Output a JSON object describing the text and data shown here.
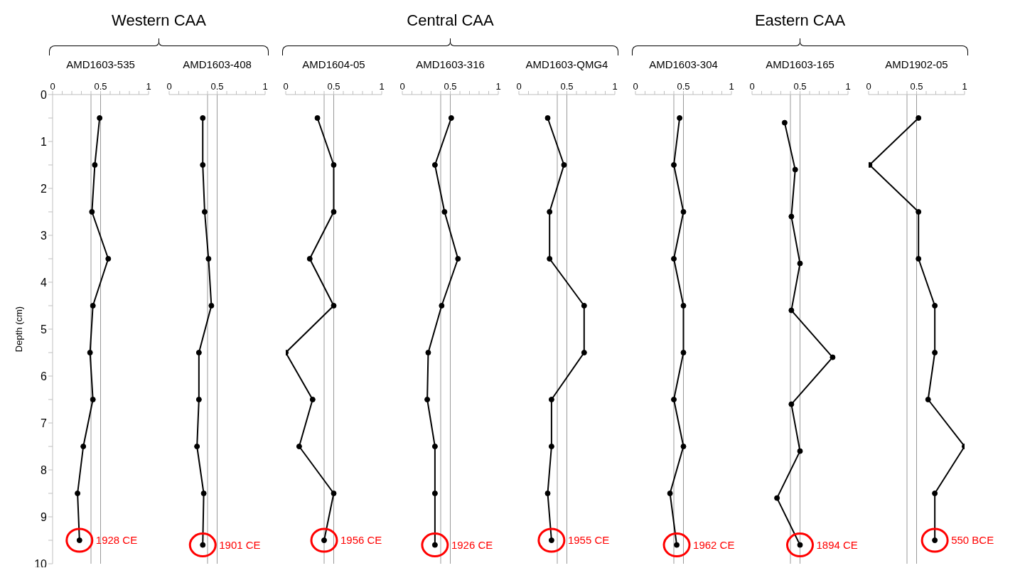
{
  "chart_data": [
    {
      "type": "line",
      "title": "AMD1603-535",
      "ylabel": "Depth (cm)",
      "annotations": [
        "Western CAA",
        {
          "text": "1928 CE",
          "x": 0.28,
          "y": 9.5
        }
      ],
      "marker": "circle",
      "xlim": [
        0,
        1
      ],
      "xticks": [
        0,
        {
          "value": 0.1,
          "label": null
        },
        {
          "value": 0.2,
          "label": null
        },
        {
          "value": 0.3,
          "label": null
        },
        {
          "value": 0.4,
          "label": null
        },
        0.5,
        {
          "value": 0.6,
          "label": null
        },
        {
          "value": 0.7,
          "label": null
        },
        {
          "value": 0.8,
          "label": null
        },
        {
          "value": 0.9,
          "label": null
        },
        1
      ],
      "ylim": [
        10,
        0
      ],
      "yticks": [
        0,
        {
          "value": 0.5,
          "label": null
        },
        1,
        {
          "value": 1.5,
          "label": null
        },
        2,
        {
          "value": 2.5,
          "label": null
        },
        3,
        {
          "value": 3.5,
          "label": null
        },
        4,
        {
          "value": 4.5,
          "label": null
        },
        5,
        {
          "value": 5.5,
          "label": null
        },
        6,
        {
          "value": 6.5,
          "label": null
        },
        7,
        {
          "value": 7.5,
          "label": null
        },
        8,
        {
          "value": 8.5,
          "label": null
        },
        9,
        {
          "value": 9.5,
          "label": null
        },
        10
      ],
      "ref_lines": [
        {
          "axis": "x",
          "value": 0.4,
          "color": "#999999"
        },
        {
          "axis": "x",
          "value": 0.5,
          "color": "#999999"
        }
      ],
      "series": [
        {
          "color": "#000000",
          "x": [
            0.49,
            0.44,
            0.41,
            0.58,
            0.42,
            0.39,
            0.42,
            0.32,
            0.26,
            0.28
          ],
          "values": [
            0.5,
            1.5,
            2.5,
            3.5,
            4.5,
            5.5,
            6.5,
            7.5,
            8.5,
            9.5
          ]
        }
      ]
    },
    {
      "type": "line",
      "title": "AMD1603-408",
      "annotations": [
        {
          "text": "1901 CE",
          "x": 0.35,
          "y": 9.6
        }
      ],
      "marker": "circle",
      "tick_labels": "x",
      "xlim": [
        0,
        1
      ],
      "xticks": [
        0,
        {
          "value": 0.1,
          "label": null
        },
        {
          "value": 0.2,
          "label": null
        },
        {
          "value": 0.3,
          "label": null
        },
        {
          "value": 0.4,
          "label": null
        },
        0.5,
        {
          "value": 0.6,
          "label": null
        },
        {
          "value": 0.7,
          "label": null
        },
        {
          "value": 0.8,
          "label": null
        },
        {
          "value": 0.9,
          "label": null
        },
        1
      ],
      "ylim": [
        10,
        0
      ],
      "ref_lines": [
        {
          "axis": "x",
          "value": 0.4,
          "color": "#999999"
        },
        {
          "axis": "x",
          "value": 0.5,
          "color": "#999999"
        }
      ],
      "series": [
        {
          "color": "#000000",
          "x": [
            0.35,
            0.35,
            0.37,
            0.41,
            0.44,
            0.31,
            0.31,
            0.29,
            0.36,
            0.35
          ],
          "values": [
            0.5,
            1.5,
            2.5,
            3.5,
            4.5,
            5.5,
            6.5,
            7.5,
            8.5,
            9.6
          ]
        }
      ]
    },
    {
      "type": "line",
      "title": "AMD1604-05",
      "annotations": [
        "Central CAA",
        {
          "text": "1956 CE",
          "x": 0.4,
          "y": 9.5
        }
      ],
      "marker": "circle",
      "tick_labels": "x",
      "xlim": [
        0,
        1
      ],
      "xticks": [
        0,
        {
          "value": 0.1,
          "label": null
        },
        {
          "value": 0.2,
          "label": null
        },
        {
          "value": 0.3,
          "label": null
        },
        {
          "value": 0.4,
          "label": null
        },
        0.5,
        {
          "value": 0.6,
          "label": null
        },
        {
          "value": 0.7,
          "label": null
        },
        {
          "value": 0.8,
          "label": null
        },
        {
          "value": 0.9,
          "label": null
        },
        1
      ],
      "ylim": [
        10,
        0
      ],
      "ref_lines": [
        {
          "axis": "x",
          "value": 0.4,
          "color": "#999999"
        },
        {
          "axis": "x",
          "value": 0.5,
          "color": "#999999"
        }
      ],
      "series": [
        {
          "color": "#000000",
          "x": [
            0.33,
            0.5,
            0.5,
            0.25,
            0.5,
            0.0,
            0.28,
            0.14,
            0.5,
            0.4
          ],
          "values": [
            0.5,
            1.5,
            2.5,
            3.5,
            4.5,
            5.5,
            6.5,
            7.5,
            8.5,
            9.5
          ]
        }
      ]
    },
    {
      "type": "line",
      "title": "AMD1603-316",
      "annotations": [
        {
          "text": "1926 CE",
          "x": 0.34,
          "y": 9.6
        }
      ],
      "marker": "circle",
      "tick_labels": "x",
      "xlim": [
        0,
        1
      ],
      "xticks": [
        0,
        {
          "value": 0.1,
          "label": null
        },
        {
          "value": 0.2,
          "label": null
        },
        {
          "value": 0.3,
          "label": null
        },
        {
          "value": 0.4,
          "label": null
        },
        0.5,
        {
          "value": 0.6,
          "label": null
        },
        {
          "value": 0.7,
          "label": null
        },
        {
          "value": 0.8,
          "label": null
        },
        {
          "value": 0.9,
          "label": null
        },
        1
      ],
      "ylim": [
        10,
        0
      ],
      "ref_lines": [
        {
          "axis": "x",
          "value": 0.4,
          "color": "#999999"
        },
        {
          "axis": "x",
          "value": 0.5,
          "color": "#999999"
        }
      ],
      "series": [
        {
          "color": "#000000",
          "x": [
            0.51,
            0.34,
            0.44,
            0.58,
            0.41,
            0.27,
            0.26,
            0.34,
            0.34,
            0.34
          ],
          "values": [
            0.5,
            1.5,
            2.5,
            3.5,
            4.5,
            5.5,
            6.5,
            7.5,
            8.5,
            9.6
          ]
        }
      ]
    },
    {
      "type": "line",
      "title": "AMD1603-QMG4",
      "annotations": [
        {
          "text": "1955 CE",
          "x": 0.34,
          "y": 9.5
        }
      ],
      "marker": "circle",
      "tick_labels": "x",
      "xlim": [
        0,
        1
      ],
      "xticks": [
        0,
        {
          "value": 0.1,
          "label": null
        },
        {
          "value": 0.2,
          "label": null
        },
        {
          "value": 0.3,
          "label": null
        },
        {
          "value": 0.4,
          "label": null
        },
        0.5,
        {
          "value": 0.6,
          "label": null
        },
        {
          "value": 0.7,
          "label": null
        },
        {
          "value": 0.8,
          "label": null
        },
        {
          "value": 0.9,
          "label": null
        },
        1
      ],
      "ylim": [
        10,
        0
      ],
      "ref_lines": [
        {
          "axis": "x",
          "value": 0.4,
          "color": "#999999"
        },
        {
          "axis": "x",
          "value": 0.5,
          "color": "#999999"
        }
      ],
      "series": [
        {
          "color": "#000000",
          "x": [
            0.3,
            0.47,
            0.32,
            0.32,
            0.68,
            0.68,
            0.34,
            0.34,
            0.3,
            0.34
          ],
          "values": [
            0.5,
            1.5,
            2.5,
            3.5,
            4.5,
            5.5,
            6.5,
            7.5,
            8.5,
            9.5
          ]
        }
      ]
    },
    {
      "type": "line",
      "title": "AMD1603-304",
      "annotations": [
        "Eastern CAA",
        {
          "text": "1962 CE",
          "x": 0.43,
          "y": 9.6
        }
      ],
      "marker": "circle",
      "tick_labels": "x",
      "xlim": [
        0,
        1
      ],
      "xticks": [
        0,
        {
          "value": 0.1,
          "label": null
        },
        {
          "value": 0.2,
          "label": null
        },
        {
          "value": 0.3,
          "label": null
        },
        {
          "value": 0.4,
          "label": null
        },
        0.5,
        {
          "value": 0.6,
          "label": null
        },
        {
          "value": 0.7,
          "label": null
        },
        {
          "value": 0.8,
          "label": null
        },
        {
          "value": 0.9,
          "label": null
        },
        1
      ],
      "ylim": [
        10,
        0
      ],
      "ref_lines": [
        {
          "axis": "x",
          "value": 0.4,
          "color": "#999999"
        },
        {
          "axis": "x",
          "value": 0.5,
          "color": "#999999"
        }
      ],
      "series": [
        {
          "color": "#000000",
          "x": [
            0.46,
            0.4,
            0.5,
            0.4,
            0.5,
            0.5,
            0.4,
            0.5,
            0.36,
            0.43
          ],
          "values": [
            0.5,
            1.5,
            2.5,
            3.5,
            4.5,
            5.5,
            6.5,
            7.5,
            8.5,
            9.6
          ]
        }
      ]
    },
    {
      "type": "line",
      "title": "AMD1603-165",
      "annotations": [
        {
          "text": "1894 CE",
          "x": 0.5,
          "y": 9.6
        }
      ],
      "marker": "circle",
      "tick_labels": "x",
      "xlim": [
        0,
        1
      ],
      "xticks": [
        0,
        {
          "value": 0.1,
          "label": null
        },
        {
          "value": 0.2,
          "label": null
        },
        {
          "value": 0.3,
          "label": null
        },
        {
          "value": 0.4,
          "label": null
        },
        0.5,
        {
          "value": 0.6,
          "label": null
        },
        {
          "value": 0.7,
          "label": null
        },
        {
          "value": 0.8,
          "label": null
        },
        {
          "value": 0.9,
          "label": null
        },
        1
      ],
      "ylim": [
        10,
        0
      ],
      "ref_lines": [
        {
          "axis": "x",
          "value": 0.4,
          "color": "#999999"
        },
        {
          "axis": "x",
          "value": 0.5,
          "color": "#999999"
        }
      ],
      "series": [
        {
          "color": "#000000",
          "x": [
            0.34,
            0.45,
            0.41,
            0.5,
            0.41,
            0.84,
            0.41,
            0.5,
            0.26,
            0.5
          ],
          "values": [
            0.6,
            1.6,
            2.6,
            3.6,
            4.6,
            5.6,
            6.6,
            7.6,
            8.6,
            9.6
          ]
        }
      ]
    },
    {
      "type": "line",
      "title": "AMD1902-05",
      "annotations": [
        {
          "text": "550 BCE",
          "x": 0.69,
          "y": 9.5
        }
      ],
      "marker": "circle",
      "tick_labels": "x",
      "xlim": [
        0,
        1
      ],
      "xticks": [
        0,
        {
          "value": 0.1,
          "label": null
        },
        {
          "value": 0.2,
          "label": null
        },
        {
          "value": 0.3,
          "label": null
        },
        {
          "value": 0.4,
          "label": null
        },
        0.5,
        {
          "value": 0.6,
          "label": null
        },
        {
          "value": 0.7,
          "label": null
        },
        {
          "value": 0.8,
          "label": null
        },
        {
          "value": 0.9,
          "label": null
        },
        1
      ],
      "ylim": [
        10,
        0
      ],
      "ref_lines": [
        {
          "axis": "x",
          "value": 0.4,
          "color": "#999999"
        },
        {
          "axis": "x",
          "value": 0.5,
          "color": "#999999"
        }
      ],
      "series": [
        {
          "color": "#000000",
          "x": [
            0.52,
            0.01,
            0.52,
            0.52,
            0.69,
            0.69,
            0.62,
            1.0,
            0.69,
            0.69
          ],
          "values": [
            0.5,
            1.5,
            2.5,
            3.5,
            4.5,
            5.5,
            6.5,
            7.5,
            8.5,
            9.5
          ]
        }
      ]
    }
  ]
}
